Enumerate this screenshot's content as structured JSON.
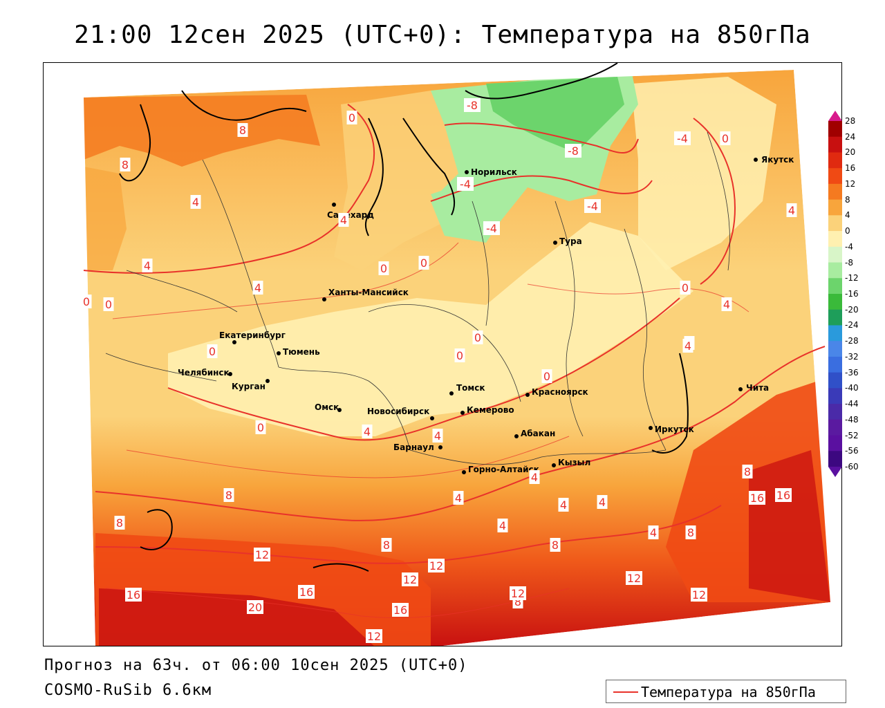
{
  "header": {
    "title": "21:00 12сен 2025 (UTC+0): Температура на 850гПа"
  },
  "footer": {
    "forecast_line": "Прогноз на 63ч. от 06:00 10сен 2025 (UTC+0)",
    "model_line": "COSMO-RuSib 6.6км"
  },
  "legend": {
    "label": "Температура на 850гПа",
    "line_color": "#e8322a"
  },
  "colorbar": {
    "ticks": [
      "28",
      "24",
      "20",
      "16",
      "12",
      "8",
      "4",
      "0",
      "-4",
      "-8",
      "-12",
      "-16",
      "-20",
      "-24",
      "-28",
      "-32",
      "-36",
      "-40",
      "-44",
      "-48",
      "-52",
      "-56",
      "-60"
    ],
    "colors": [
      "#a00000",
      "#c81010",
      "#e02a10",
      "#f04a14",
      "#f57a20",
      "#f8a53c",
      "#fbd27a",
      "#fff0b0",
      "#d8f5c8",
      "#a8eca0",
      "#6cd46c",
      "#3aba3a",
      "#1e9e5a",
      "#2a9adc",
      "#4a86e8",
      "#3a6ee0",
      "#3050c8",
      "#3a3ab8",
      "#4a2aa8",
      "#5a1aa0",
      "#5a10a0",
      "#3c0880"
    ],
    "top_arrow_color": "#d81a8c",
    "bottom_arrow_color": "#5a10a0"
  },
  "cities": [
    {
      "name": "Якутск"
    },
    {
      "name": "Норильск"
    },
    {
      "name": "Салехард"
    },
    {
      "name": "Тура"
    },
    {
      "name": "Ханты-Мансийск"
    },
    {
      "name": "Екатеринбург"
    },
    {
      "name": "Тюмень"
    },
    {
      "name": "Челябинск"
    },
    {
      "name": "Курган"
    },
    {
      "name": "Омск"
    },
    {
      "name": "Новосибирск"
    },
    {
      "name": "Томск"
    },
    {
      "name": "Красноярск"
    },
    {
      "name": "Кемерово"
    },
    {
      "name": "Абакан"
    },
    {
      "name": "Барнаул"
    },
    {
      "name": "Иркутск"
    },
    {
      "name": "Чита"
    },
    {
      "name": "Кызыл"
    },
    {
      "name": "Горно-Алтайск"
    }
  ],
  "isotherm_labels": [
    "8",
    "8",
    "4",
    "4",
    "4",
    "4",
    "0",
    "0",
    "0",
    "-8",
    "-8",
    "-4",
    "-4",
    "-4",
    "-4",
    "0",
    "4",
    "0",
    "0",
    "0",
    "0",
    "0",
    "0",
    "4",
    "4",
    "4",
    "0",
    "4",
    "8",
    "8",
    "12",
    "16",
    "20",
    "16",
    "16",
    "12",
    "12",
    "12",
    "8",
    "8",
    "12",
    "4",
    "4",
    "4",
    "4",
    "4",
    "4",
    "8",
    "8",
    "8",
    "12",
    "16",
    "16",
    "12",
    "0",
    "4"
  ]
}
